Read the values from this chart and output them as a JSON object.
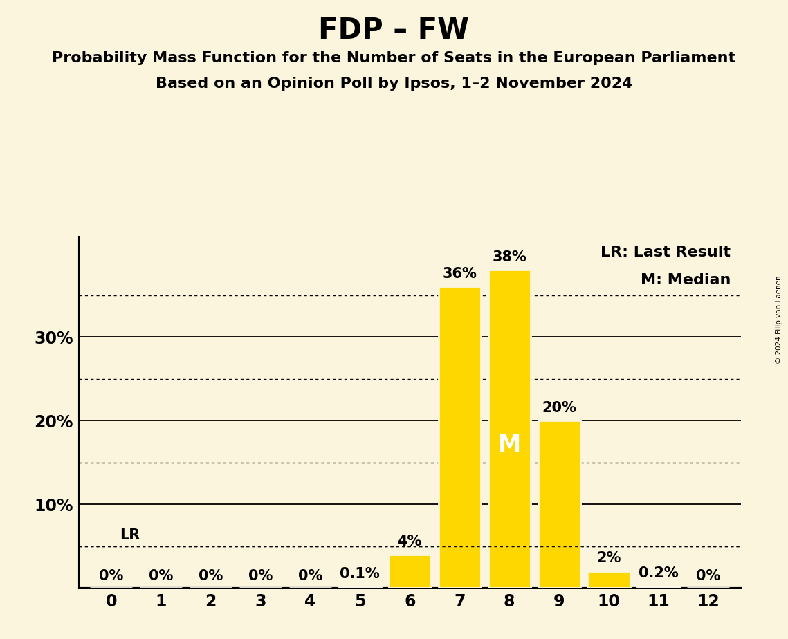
{
  "title": "FDP – FW",
  "subtitle1": "Probability Mass Function for the Number of Seats in the European Parliament",
  "subtitle2": "Based on an Opinion Poll by Ipsos, 1–2 November 2024",
  "copyright": "© 2024 Filip van Laenen",
  "categories": [
    0,
    1,
    2,
    3,
    4,
    5,
    6,
    7,
    8,
    9,
    10,
    11,
    12
  ],
  "values": [
    0.0,
    0.0,
    0.0,
    0.0,
    0.0,
    0.1,
    4.0,
    36.0,
    38.0,
    20.0,
    2.0,
    0.2,
    0.0
  ],
  "labels": [
    "0%",
    "0%",
    "0%",
    "0%",
    "0%",
    "0.1%",
    "4%",
    "36%",
    "38%",
    "20%",
    "2%",
    "0.2%",
    "0%"
  ],
  "bar_color": "#FFD700",
  "background_color": "#FAF5DC",
  "median_seat": 8,
  "last_result_value": 5.0,
  "legend_lr": "LR: Last Result",
  "legend_m": "M: Median",
  "yticks": [
    10,
    20,
    30
  ],
  "ylim": [
    0,
    42
  ],
  "solid_line_values": [
    10,
    20,
    30
  ],
  "dotted_line_values": [
    5,
    15,
    25,
    35
  ],
  "lr_dotted_value": 5.0,
  "title_fontsize": 30,
  "subtitle_fontsize": 16,
  "label_fontsize": 15,
  "tick_fontsize": 17,
  "legend_fontsize": 16,
  "m_fontsize": 24
}
